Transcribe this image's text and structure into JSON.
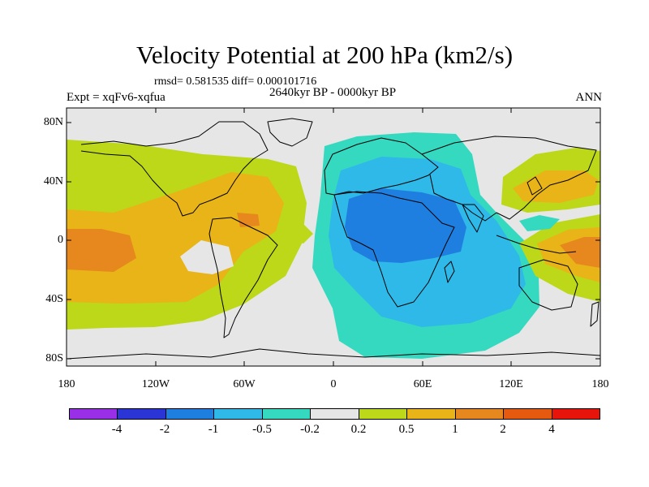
{
  "title": "Velocity Potential at 200 hPa (km2/s)",
  "stats": "rmsd= 0.581535  diff= 0.000101716",
  "left_label": "Expt = xqFv6-xqfua",
  "center_label": "2640kyr BP - 0000kyr BP",
  "right_label": "ANN",
  "lat_labels": [
    "80N",
    "40N",
    "0",
    "40S",
    "80S"
  ],
  "lon_labels": [
    "180",
    "120W",
    "60W",
    "0",
    "60E",
    "120E",
    "180"
  ],
  "colorbar": {
    "colors": [
      "#9a2fe8",
      "#2b35d6",
      "#1f7fe0",
      "#2fb9e8",
      "#35d9c0",
      "#e6e6e6",
      "#bcd818",
      "#e8b418",
      "#e6881e",
      "#e65a10",
      "#e6140a"
    ],
    "labels": [
      "-4",
      "-2",
      "-1",
      "-0.5",
      "-0.2",
      "0.2",
      "0.5",
      "1",
      "2",
      "4"
    ]
  },
  "palette": {
    "land_background": "#e6e6e6",
    "pos_02": "#bcd818",
    "pos_05": "#e8b418",
    "pos_1": "#e6881e",
    "neg_02": "#35d9c0",
    "neg_05": "#2fb9e8",
    "neg_1": "#1f7fe0"
  }
}
